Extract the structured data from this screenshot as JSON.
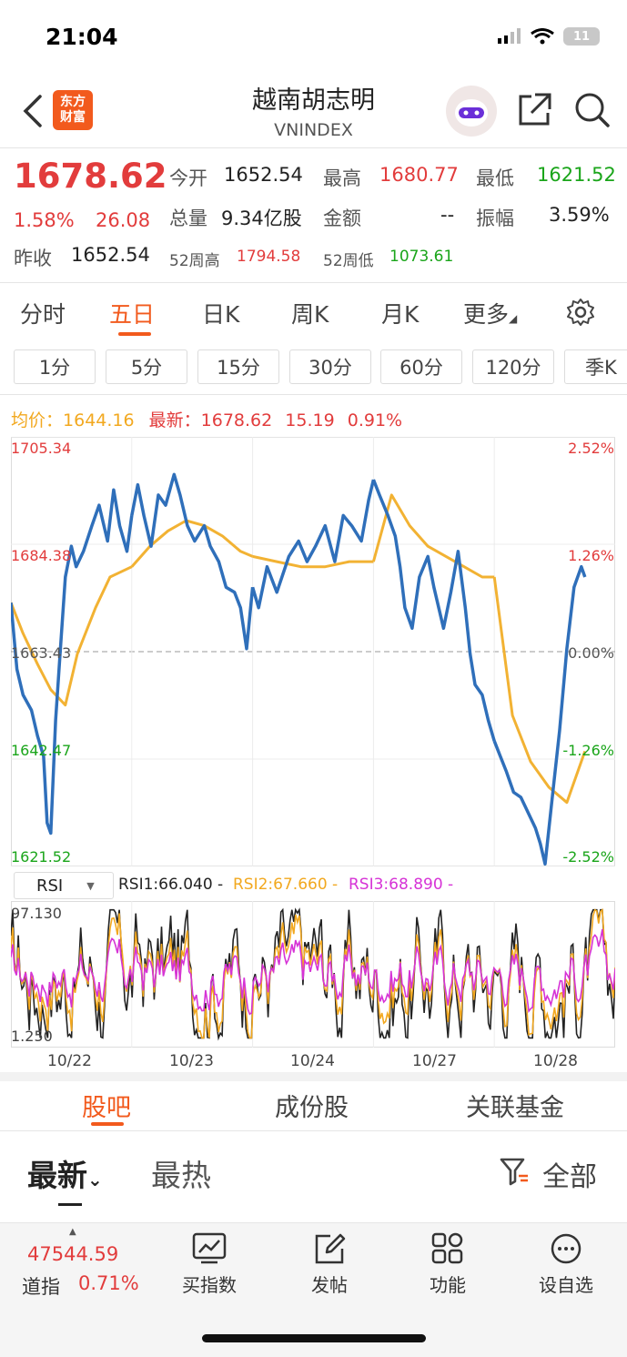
{
  "status_bar": {
    "time": "21:04",
    "battery": "11"
  },
  "header": {
    "logo_line1": "东方",
    "logo_line2": "财富",
    "title": "越南胡志明",
    "subtitle": "VNINDEX"
  },
  "quote": {
    "last": "1678.62",
    "change_pct": "1.58%",
    "change": "26.08",
    "prev_close_label": "昨收",
    "prev_close": "1652.54",
    "open_label": "今开",
    "open": "1652.54",
    "high_label": "最高",
    "high": "1680.77",
    "low_label": "最低",
    "low": "1621.52",
    "volume_label": "总量",
    "volume": "9.34亿股",
    "amount_label": "金额",
    "amount": "--",
    "amplitude_label": "振幅",
    "amplitude": "3.59%",
    "w52_high_label": "52周高",
    "w52_high": "1794.58",
    "w52_low_label": "52周低",
    "w52_low": "1073.61"
  },
  "period_tabs": [
    "分时",
    "五日",
    "日K",
    "周K",
    "月K",
    "更多"
  ],
  "active_period": "五日",
  "interval_buttons": [
    "1分",
    "5分",
    "15分",
    "30分",
    "60分",
    "120分",
    "季K"
  ],
  "chart_info": {
    "avg_label": "均价：",
    "avg": "1644.16",
    "latest_label": "最新：",
    "latest": "1678.62",
    "chg": "15.19",
    "chg_pct": "0.91%"
  },
  "chart_data": {
    "type": "line",
    "x_dates": [
      "10/22",
      "10/23",
      "10/24",
      "10/27",
      "10/28"
    ],
    "y_ticks": [
      "1705.34",
      "1684.38",
      "1663.43",
      "1642.47",
      "1621.52"
    ],
    "pct_ticks": [
      "2.52%",
      "1.26%",
      "0.00%",
      "-1.26%",
      "-2.52%"
    ],
    "ylim": [
      1621.52,
      1705.34
    ],
    "base": 1663.43,
    "price_series": {
      "color": "#2f6fba",
      "points": [
        [
          0,
          1673
        ],
        [
          0.05,
          1660
        ],
        [
          0.1,
          1655
        ],
        [
          0.17,
          1652
        ],
        [
          0.22,
          1647
        ],
        [
          0.27,
          1643
        ],
        [
          0.3,
          1630
        ],
        [
          0.33,
          1628
        ],
        [
          0.37,
          1650
        ],
        [
          0.41,
          1664
        ],
        [
          0.45,
          1678
        ],
        [
          0.5,
          1684
        ],
        [
          0.54,
          1680
        ],
        [
          0.6,
          1683
        ],
        [
          0.67,
          1688
        ],
        [
          0.73,
          1692
        ],
        [
          0.8,
          1685
        ],
        [
          0.85,
          1695
        ],
        [
          0.9,
          1688
        ],
        [
          0.96,
          1683
        ],
        [
          1.0,
          1690
        ],
        [
          1.0,
          1690
        ],
        [
          1.05,
          1696
        ],
        [
          1.1,
          1690
        ],
        [
          1.16,
          1684
        ],
        [
          1.22,
          1694
        ],
        [
          1.28,
          1692
        ],
        [
          1.35,
          1698
        ],
        [
          1.4,
          1694
        ],
        [
          1.46,
          1688
        ],
        [
          1.52,
          1685
        ],
        [
          1.6,
          1688
        ],
        [
          1.65,
          1684
        ],
        [
          1.72,
          1681
        ],
        [
          1.78,
          1676
        ],
        [
          1.85,
          1675
        ],
        [
          1.9,
          1672
        ],
        [
          1.95,
          1664
        ],
        [
          2.0,
          1676
        ],
        [
          2.0,
          1676
        ],
        [
          2.05,
          1672
        ],
        [
          2.12,
          1680
        ],
        [
          2.2,
          1675
        ],
        [
          2.3,
          1682
        ],
        [
          2.38,
          1685
        ],
        [
          2.45,
          1681
        ],
        [
          2.52,
          1684
        ],
        [
          2.6,
          1688
        ],
        [
          2.68,
          1681
        ],
        [
          2.75,
          1690
        ],
        [
          2.82,
          1688
        ],
        [
          2.9,
          1685
        ],
        [
          2.96,
          1693
        ],
        [
          3.0,
          1697
        ],
        [
          3.0,
          1697
        ],
        [
          3.05,
          1694
        ],
        [
          3.12,
          1690
        ],
        [
          3.18,
          1686
        ],
        [
          3.22,
          1680
        ],
        [
          3.26,
          1672
        ],
        [
          3.32,
          1668
        ],
        [
          3.38,
          1678
        ],
        [
          3.45,
          1682
        ],
        [
          3.5,
          1676
        ],
        [
          3.58,
          1668
        ],
        [
          3.64,
          1675
        ],
        [
          3.7,
          1683
        ],
        [
          3.76,
          1672
        ],
        [
          3.8,
          1663
        ],
        [
          3.84,
          1657
        ],
        [
          3.9,
          1655
        ],
        [
          3.95,
          1650
        ],
        [
          4.0,
          1646
        ],
        [
          4.0,
          1646
        ],
        [
          4.05,
          1643
        ],
        [
          4.1,
          1640
        ],
        [
          4.16,
          1636
        ],
        [
          4.22,
          1635
        ],
        [
          4.28,
          1632
        ],
        [
          4.34,
          1629
        ],
        [
          4.38,
          1626
        ],
        [
          4.42,
          1622
        ],
        [
          4.48,
          1635
        ],
        [
          4.54,
          1648
        ],
        [
          4.6,
          1664
        ],
        [
          4.66,
          1676
        ],
        [
          4.72,
          1680
        ],
        [
          4.75,
          1678
        ]
      ]
    },
    "avg_series": {
      "color": "#f2b233",
      "points": [
        [
          0,
          1673
        ],
        [
          0.1,
          1667
        ],
        [
          0.22,
          1661
        ],
        [
          0.33,
          1656
        ],
        [
          0.45,
          1653
        ],
        [
          0.55,
          1663
        ],
        [
          0.7,
          1672
        ],
        [
          0.82,
          1678
        ],
        [
          1.0,
          1680
        ],
        [
          1.0,
          1680
        ],
        [
          1.15,
          1684
        ],
        [
          1.3,
          1687
        ],
        [
          1.45,
          1689
        ],
        [
          1.6,
          1688
        ],
        [
          1.75,
          1686
        ],
        [
          1.9,
          1683
        ],
        [
          2.0,
          1682
        ],
        [
          2.0,
          1682
        ],
        [
          2.2,
          1681
        ],
        [
          2.4,
          1680
        ],
        [
          2.6,
          1680
        ],
        [
          2.8,
          1681
        ],
        [
          3.0,
          1681
        ],
        [
          3.0,
          1681
        ],
        [
          3.15,
          1694
        ],
        [
          3.3,
          1688
        ],
        [
          3.45,
          1684
        ],
        [
          3.6,
          1682
        ],
        [
          3.75,
          1680
        ],
        [
          3.9,
          1678
        ],
        [
          4.0,
          1678
        ],
        [
          4.0,
          1678
        ],
        [
          4.15,
          1651
        ],
        [
          4.3,
          1642
        ],
        [
          4.45,
          1637
        ],
        [
          4.6,
          1634
        ],
        [
          4.75,
          1644
        ]
      ]
    },
    "rsi": {
      "ylim": [
        1.25,
        97.13
      ],
      "y_ticks": [
        "97.130",
        "1.250"
      ],
      "rsi1": "66.040",
      "rsi2": "67.660",
      "rsi3": "68.890",
      "colors": {
        "rsi1": "#222222",
        "rsi2": "#f2a81f",
        "rsi3": "#d633d6"
      }
    }
  },
  "rsi_select": "RSI",
  "rsi_legend": {
    "rsi1": "RSI1:66.040 -",
    "rsi2": "RSI2:67.660 -",
    "rsi3": "RSI3:68.890 -"
  },
  "bottom_tabs": [
    "股吧",
    "成份股",
    "关联基金"
  ],
  "active_bottom_tab": "股吧",
  "sort": {
    "latest": "最新",
    "hot": "最热",
    "filter": "全部"
  },
  "nav": {
    "dow_value": "47544.59",
    "dow_label": "道指",
    "dow_pct": "0.71%",
    "buy_index": "买指数",
    "post": "发帖",
    "functions": "功能",
    "watchlist": "设自选"
  }
}
